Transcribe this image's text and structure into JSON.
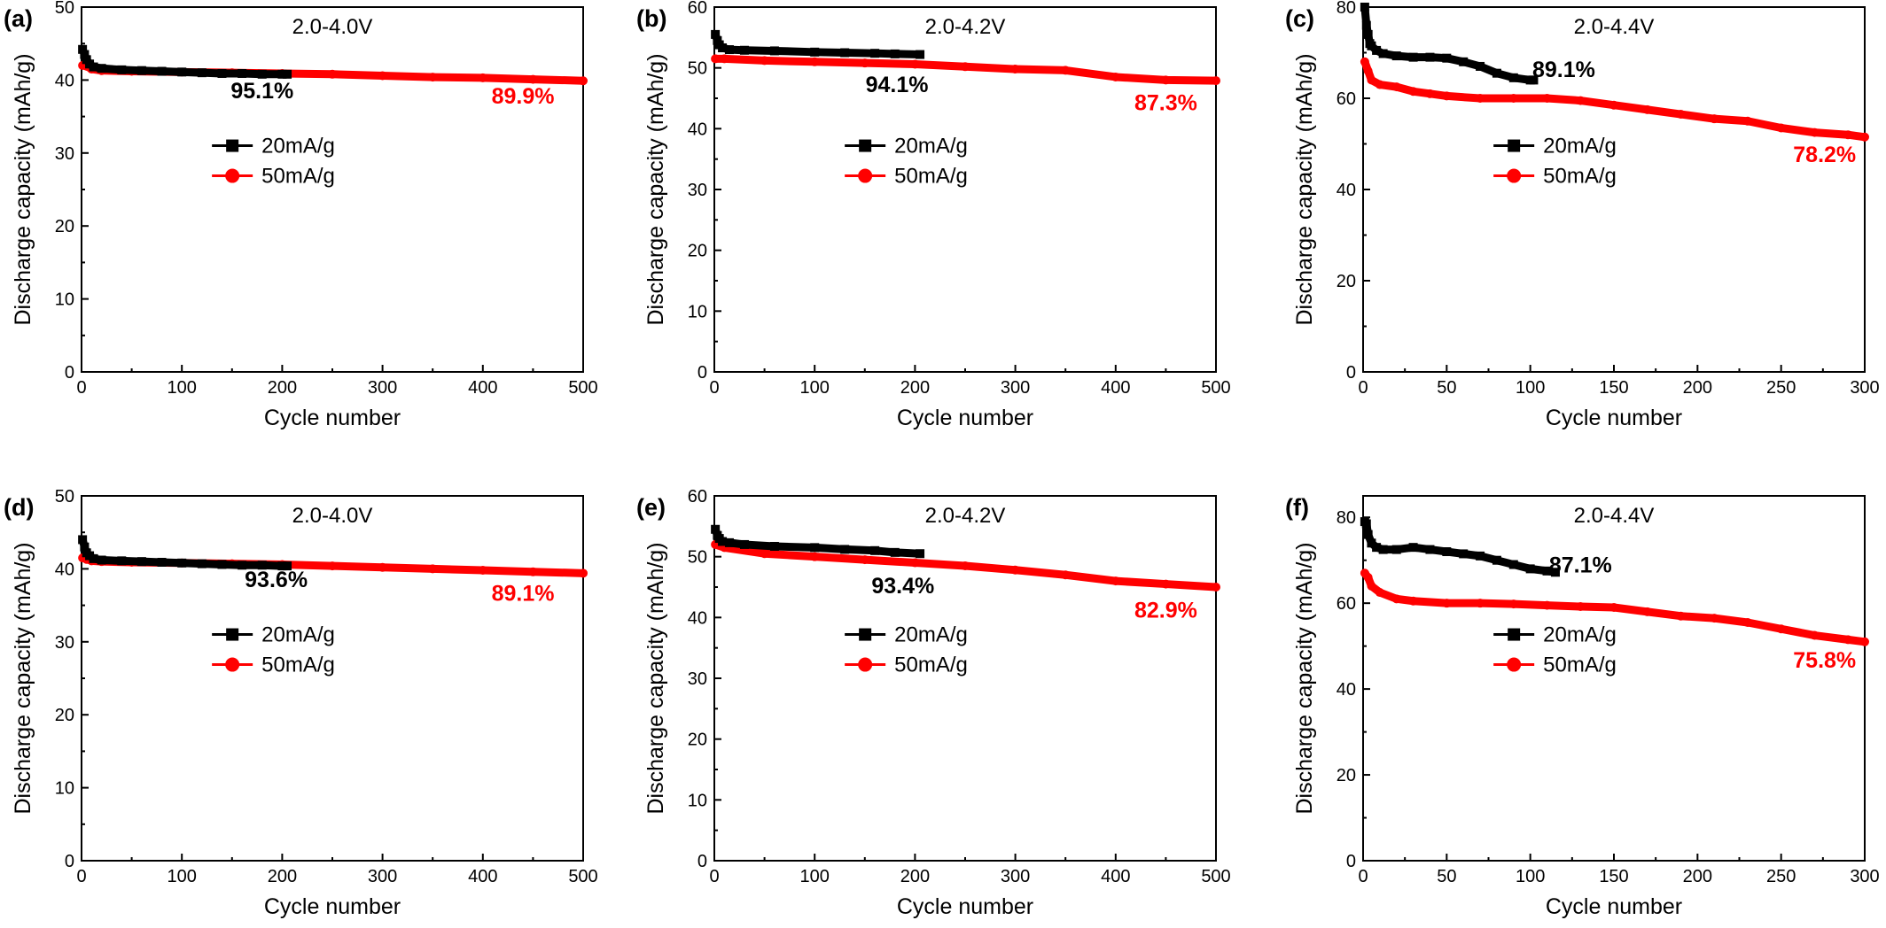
{
  "colors": {
    "series_20": "#000000",
    "series_50": "#ff0000"
  },
  "chart_data": [
    {
      "type": "line",
      "panel_label": "(a)",
      "voltage_label": "2.0-4.0V",
      "xlabel": "Cycle number",
      "ylabel": "Discharge capacity (mAh/g)",
      "xlim": [
        0,
        500
      ],
      "ylim": [
        0,
        50
      ],
      "xticks": [
        0,
        100,
        200,
        300,
        400,
        500
      ],
      "yticks": [
        0,
        10,
        20,
        30,
        40,
        50
      ],
      "legend_position": "center",
      "series": [
        {
          "name": "20mA/g",
          "color": "#000000",
          "marker": "square",
          "x": [
            1,
            3,
            5,
            8,
            12,
            20,
            40,
            60,
            80,
            100,
            120,
            140,
            160,
            180,
            200,
            205
          ],
          "y": [
            44.2,
            43.5,
            42.8,
            42.2,
            41.8,
            41.6,
            41.4,
            41.3,
            41.2,
            41.1,
            41.0,
            40.9,
            40.9,
            40.8,
            40.8,
            40.8
          ]
        },
        {
          "name": "50mA/g",
          "color": "#ff0000",
          "marker": "circle",
          "x": [
            1,
            5,
            10,
            20,
            50,
            100,
            150,
            200,
            250,
            300,
            350,
            400,
            450,
            500
          ],
          "y": [
            42.0,
            41.9,
            41.5,
            41.3,
            41.2,
            41.1,
            41.0,
            40.9,
            40.8,
            40.6,
            40.4,
            40.3,
            40.1,
            39.9
          ]
        }
      ],
      "annotations": [
        {
          "text": "95.1%",
          "x": 180,
          "y": 37.5,
          "color": "#000000"
        },
        {
          "text": "89.9%",
          "x": 440,
          "y": 36.8,
          "color": "#ff0000"
        }
      ]
    },
    {
      "type": "line",
      "panel_label": "(b)",
      "voltage_label": "2.0-4.2V",
      "xlabel": "Cycle number",
      "ylabel": "Discharge capacity (mAh/g)",
      "xlim": [
        0,
        500
      ],
      "ylim": [
        0,
        60
      ],
      "xticks": [
        0,
        100,
        200,
        300,
        400,
        500
      ],
      "yticks": [
        0,
        10,
        20,
        30,
        40,
        50,
        60
      ],
      "legend_position": "center",
      "series": [
        {
          "name": "20mA/g",
          "color": "#000000",
          "marker": "square",
          "x": [
            1,
            3,
            5,
            8,
            15,
            30,
            60,
            100,
            130,
            160,
            180,
            205
          ],
          "y": [
            55.5,
            54.5,
            53.8,
            53.3,
            53.0,
            52.9,
            52.8,
            52.6,
            52.5,
            52.4,
            52.3,
            52.2
          ]
        },
        {
          "name": "50mA/g",
          "color": "#ff0000",
          "marker": "circle",
          "x": [
            1,
            10,
            50,
            100,
            150,
            200,
            250,
            300,
            350,
            400,
            450,
            500
          ],
          "y": [
            51.5,
            51.5,
            51.2,
            51.0,
            50.8,
            50.6,
            50.2,
            49.8,
            49.6,
            48.5,
            48.0,
            47.9
          ]
        }
      ],
      "annotations": [
        {
          "text": "94.1%",
          "x": 182,
          "y": 46.0,
          "color": "#000000"
        },
        {
          "text": "87.3%",
          "x": 450,
          "y": 43.0,
          "color": "#ff0000"
        }
      ]
    },
    {
      "type": "line",
      "panel_label": "(c)",
      "voltage_label": "2.0-4.4V",
      "xlabel": "Cycle number",
      "ylabel": "Discharge capacity (mAh/g)",
      "xlim": [
        0,
        300
      ],
      "ylim": [
        0,
        80
      ],
      "xticks": [
        0,
        50,
        100,
        150,
        200,
        250,
        300
      ],
      "yticks": [
        0,
        20,
        40,
        60,
        80
      ],
      "legend_position": "center",
      "series": [
        {
          "name": "20mA/g",
          "color": "#000000",
          "marker": "square",
          "x": [
            1,
            2,
            3,
            4,
            5,
            8,
            12,
            20,
            30,
            40,
            50,
            60,
            70,
            80,
            90,
            100,
            102
          ],
          "y": [
            80.0,
            76.0,
            74.0,
            72.0,
            71.5,
            70.5,
            69.8,
            69.3,
            69.0,
            69.0,
            68.8,
            68.0,
            67.0,
            65.5,
            64.5,
            64.0,
            64.0
          ]
        },
        {
          "name": "50mA/g",
          "color": "#ff0000",
          "marker": "circle",
          "x": [
            1,
            3,
            5,
            10,
            20,
            30,
            40,
            50,
            70,
            90,
            110,
            130,
            150,
            170,
            190,
            210,
            230,
            250,
            270,
            290,
            300
          ],
          "y": [
            68.0,
            66.0,
            64.0,
            63.0,
            62.5,
            61.5,
            61.0,
            60.5,
            60.0,
            60.0,
            60.0,
            59.5,
            58.5,
            57.5,
            56.5,
            55.5,
            55.0,
            53.5,
            52.5,
            52.0,
            51.5
          ]
        }
      ],
      "annotations": [
        {
          "text": "89.1%",
          "x": 120,
          "y": 64.7,
          "color": "#000000"
        },
        {
          "text": "78.2%",
          "x": 276,
          "y": 46.0,
          "color": "#ff0000"
        }
      ]
    },
    {
      "type": "line",
      "panel_label": "(d)",
      "voltage_label": "2.0-4.0V",
      "xlabel": "Cycle number",
      "ylabel": "Discharge capacity (mAh/g)",
      "xlim": [
        0,
        500
      ],
      "ylim": [
        0,
        50
      ],
      "xticks": [
        0,
        100,
        200,
        300,
        400,
        500
      ],
      "yticks": [
        0,
        10,
        20,
        30,
        40,
        50
      ],
      "legend_position": "center",
      "series": [
        {
          "name": "20mA/g",
          "color": "#000000",
          "marker": "square",
          "x": [
            1,
            3,
            5,
            8,
            12,
            20,
            40,
            60,
            80,
            100,
            120,
            140,
            160,
            180,
            200,
            205
          ],
          "y": [
            44.0,
            43.0,
            42.2,
            41.8,
            41.4,
            41.2,
            41.1,
            41.0,
            40.9,
            40.8,
            40.7,
            40.6,
            40.5,
            40.5,
            40.4,
            40.4
          ]
        },
        {
          "name": "50mA/g",
          "color": "#ff0000",
          "marker": "circle",
          "x": [
            1,
            5,
            10,
            20,
            50,
            100,
            150,
            200,
            250,
            300,
            350,
            400,
            450,
            500
          ],
          "y": [
            41.5,
            41.3,
            41.1,
            41.0,
            40.9,
            40.8,
            40.7,
            40.6,
            40.4,
            40.2,
            40.0,
            39.8,
            39.6,
            39.4
          ]
        }
      ],
      "annotations": [
        {
          "text": "93.6%",
          "x": 194,
          "y": 37.5,
          "color": "#000000"
        },
        {
          "text": "89.1%",
          "x": 440,
          "y": 35.6,
          "color": "#ff0000"
        }
      ]
    },
    {
      "type": "line",
      "panel_label": "(e)",
      "voltage_label": "2.0-4.2V",
      "xlabel": "Cycle number",
      "ylabel": "Discharge capacity (mAh/g)",
      "xlim": [
        0,
        500
      ],
      "ylim": [
        0,
        60
      ],
      "xticks": [
        0,
        100,
        200,
        300,
        400,
        500
      ],
      "yticks": [
        0,
        10,
        20,
        30,
        40,
        50,
        60
      ],
      "legend_position": "center",
      "series": [
        {
          "name": "20mA/g",
          "color": "#000000",
          "marker": "square",
          "x": [
            1,
            3,
            5,
            8,
            15,
            30,
            60,
            100,
            130,
            160,
            180,
            205
          ],
          "y": [
            54.5,
            53.5,
            53.0,
            52.5,
            52.3,
            52.0,
            51.7,
            51.5,
            51.2,
            51.0,
            50.7,
            50.5
          ]
        },
        {
          "name": "50mA/g",
          "color": "#ff0000",
          "marker": "circle",
          "x": [
            1,
            10,
            50,
            100,
            150,
            200,
            250,
            300,
            350,
            400,
            450,
            500
          ],
          "y": [
            52.0,
            51.5,
            50.5,
            50.0,
            49.5,
            49.0,
            48.5,
            47.8,
            47.0,
            46.0,
            45.5,
            45.0
          ]
        }
      ],
      "annotations": [
        {
          "text": "93.4%",
          "x": 188,
          "y": 44.0,
          "color": "#000000"
        },
        {
          "text": "82.9%",
          "x": 450,
          "y": 40.0,
          "color": "#ff0000"
        }
      ]
    },
    {
      "type": "line",
      "panel_label": "(f)",
      "voltage_label": "2.0-4.4V",
      "xlabel": "Cycle number",
      "ylabel": "Discharge capacity (mAh/g)",
      "xlim": [
        0,
        300
      ],
      "ylim": [
        0,
        85
      ],
      "xticks": [
        0,
        50,
        100,
        150,
        200,
        250,
        300
      ],
      "yticks": [
        0,
        20,
        40,
        60,
        80
      ],
      "legend_position": "center",
      "series": [
        {
          "name": "20mA/g",
          "color": "#000000",
          "marker": "square",
          "x": [
            1,
            2,
            3,
            5,
            8,
            12,
            20,
            30,
            40,
            50,
            60,
            70,
            80,
            90,
            100,
            110,
            115
          ],
          "y": [
            79.0,
            78.5,
            76.0,
            74.0,
            73.0,
            72.5,
            72.5,
            73.0,
            72.5,
            72.0,
            71.5,
            71.0,
            70.0,
            69.0,
            68.0,
            67.5,
            67.2
          ]
        },
        {
          "name": "50mA/g",
          "color": "#ff0000",
          "marker": "circle",
          "x": [
            1,
            3,
            5,
            10,
            20,
            30,
            50,
            70,
            90,
            110,
            130,
            150,
            170,
            190,
            210,
            230,
            250,
            270,
            290,
            300
          ],
          "y": [
            67.0,
            66.0,
            64.0,
            62.5,
            61.0,
            60.5,
            60.0,
            60.0,
            59.8,
            59.5,
            59.2,
            59.0,
            58.0,
            57.0,
            56.5,
            55.5,
            54.0,
            52.5,
            51.5,
            51.0
          ]
        }
      ],
      "annotations": [
        {
          "text": "87.1%",
          "x": 130,
          "y": 67.2,
          "color": "#000000"
        },
        {
          "text": "75.8%",
          "x": 276,
          "y": 45.0,
          "color": "#ff0000"
        }
      ]
    }
  ]
}
